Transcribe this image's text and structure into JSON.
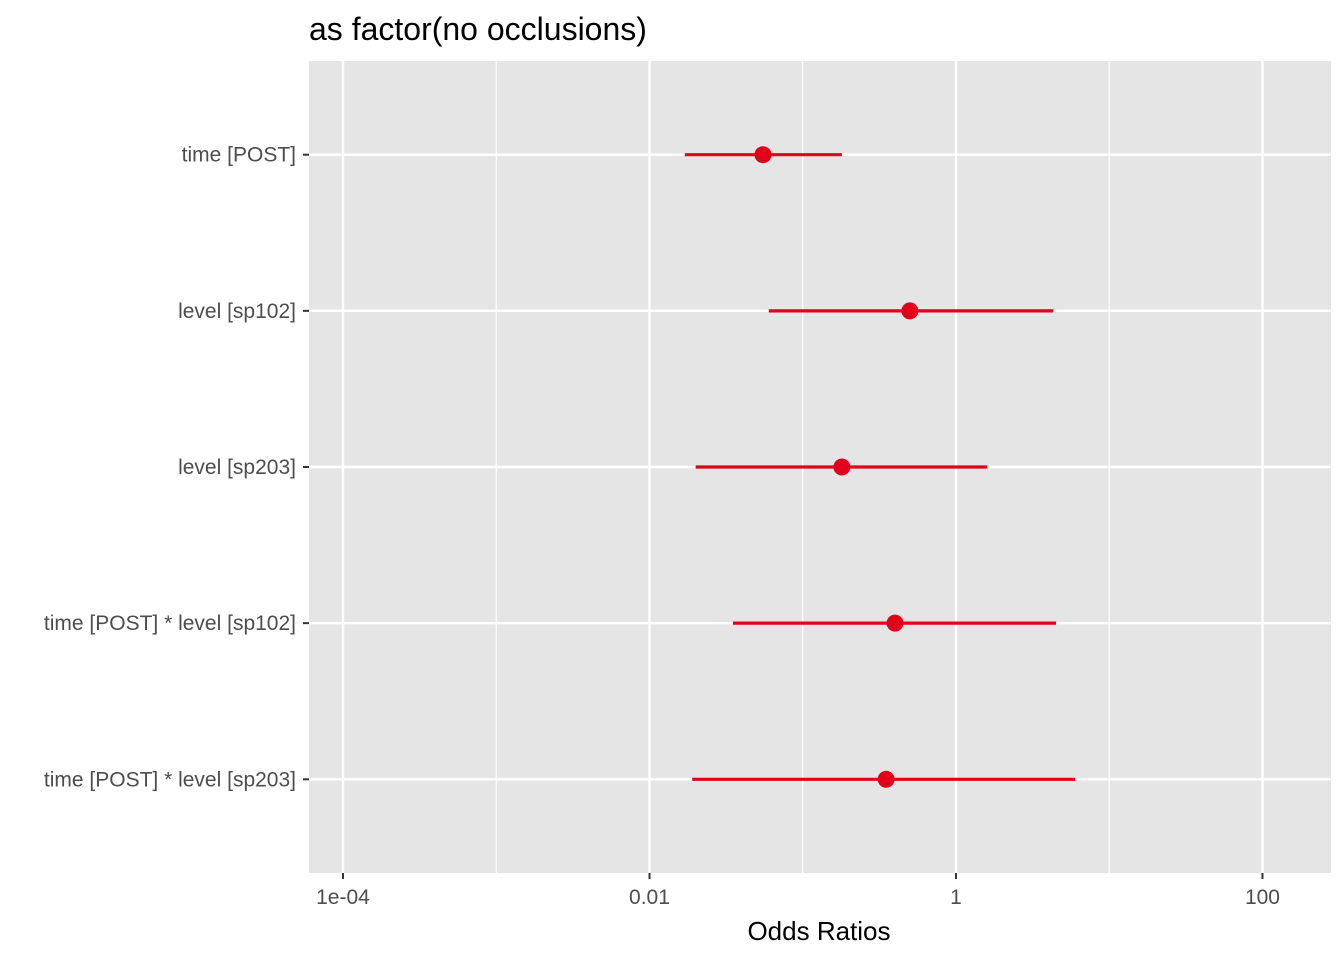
{
  "chart_data": {
    "type": "scatter",
    "subtype": "forest-plot",
    "title": "as factor(no occlusions)",
    "xlabel": "Odds Ratios",
    "ylabel": "",
    "x_scale": "log10",
    "xlim": [
      6e-05,
      280
    ],
    "x_ticks": [
      {
        "value": 0.0001,
        "label": "1e-04"
      },
      {
        "value": 0.01,
        "label": "0.01"
      },
      {
        "value": 1,
        "label": "1"
      },
      {
        "value": 100,
        "label": "100"
      }
    ],
    "x_minor_ticks": [
      0.001,
      0.1,
      10
    ],
    "reference_line": 1,
    "grid": true,
    "legend": "none",
    "background": "#e5e5e5",
    "grid_color": "#ffffff",
    "point_color": "#e3001b",
    "categories": [
      "time [POST]",
      "level [sp102]",
      "level [sp203]",
      "time [POST] * level [sp102]",
      "time [POST] * level [sp203]"
    ],
    "estimates": [
      0.055,
      0.5,
      0.18,
      0.4,
      0.35
    ],
    "ci_low": [
      0.017,
      0.06,
      0.02,
      0.035,
      0.019
    ],
    "ci_high": [
      0.18,
      4.3,
      1.6,
      4.5,
      6.0
    ]
  }
}
